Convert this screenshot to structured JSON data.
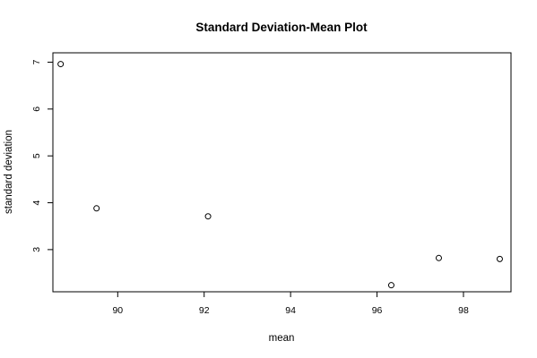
{
  "chart_data": {
    "type": "scatter",
    "title": "Standard Deviation-Mean Plot",
    "xlabel": "mean",
    "ylabel": "standard deviation",
    "xlim": [
      88.5,
      99.1
    ],
    "ylim": [
      2.1,
      7.2
    ],
    "xticks": [
      90,
      92,
      94,
      96,
      98
    ],
    "yticks": [
      3,
      4,
      5,
      6,
      7
    ],
    "grid": false,
    "marker": "open-circle",
    "points": [
      {
        "x": 88.68,
        "y": 6.96
      },
      {
        "x": 89.51,
        "y": 3.88
      },
      {
        "x": 92.09,
        "y": 3.71
      },
      {
        "x": 96.33,
        "y": 2.24
      },
      {
        "x": 97.43,
        "y": 2.82
      },
      {
        "x": 98.84,
        "y": 2.8
      }
    ]
  }
}
